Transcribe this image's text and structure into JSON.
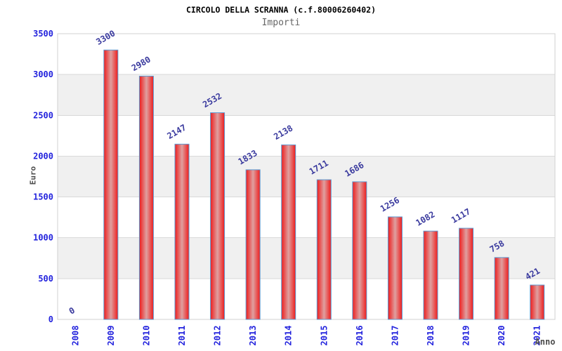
{
  "chart_data": {
    "type": "bar",
    "title": "CIRCOLO DELLA SCRANNA (c.f.80006260402)",
    "subtitle": "Importi",
    "xlabel": "Anno",
    "ylabel": "Euro",
    "categories": [
      "2008",
      "2009",
      "2010",
      "2011",
      "2012",
      "2013",
      "2014",
      "2015",
      "2016",
      "2017",
      "2018",
      "2019",
      "2020",
      "2021"
    ],
    "values": [
      0,
      3300,
      2980,
      2147,
      2532,
      1833,
      2138,
      1711,
      1686,
      1256,
      1082,
      1117,
      758,
      421
    ],
    "ylim": [
      0,
      3500
    ],
    "ytick_step": 500,
    "yticks": [
      "0",
      "500",
      "1000",
      "1500",
      "2000",
      "2500",
      "3000",
      "3500"
    ],
    "grid": "horizontal-bands-alternating",
    "legend": null
  },
  "colors": {
    "bar_fill_edge": "#ee1c1c",
    "bar_fill_center": "#dfa0a0",
    "bar_border": "#5c9ad2",
    "tick_label": "#2222dd",
    "value_label": "#3a3a9e",
    "title": "#000000",
    "subtitle": "#666666",
    "axis_title": "#4d4d4d",
    "band_gray": "#f0f0f0",
    "band_white": "#ffffff",
    "grid_line": "#d9d9d9",
    "plot_border": "#d0d0d0"
  }
}
